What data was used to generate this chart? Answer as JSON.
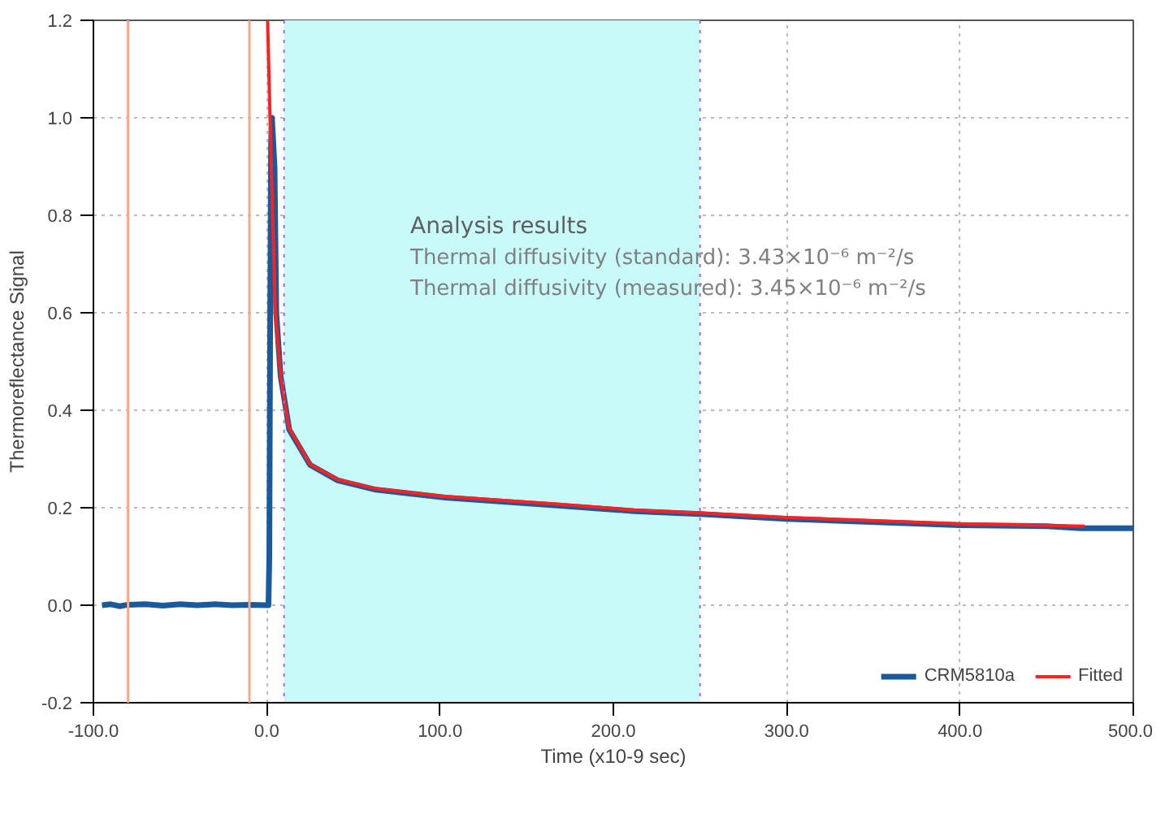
{
  "chart_data": {
    "type": "line",
    "xlabel": "Time (x10-9 sec)",
    "ylabel": "Thermoreflectance Signal",
    "xlim": [
      -100,
      500
    ],
    "ylim": [
      -0.2,
      1.2
    ],
    "xticks": [
      {
        "value": -100,
        "label": "-100.0"
      },
      {
        "value": 0,
        "label": "0.0"
      },
      {
        "value": 100,
        "label": "100.0"
      },
      {
        "value": 200,
        "label": "200.0"
      },
      {
        "value": 300,
        "label": "300.0"
      },
      {
        "value": 400,
        "label": "400.0"
      },
      {
        "value": 500,
        "label": "500.0"
      }
    ],
    "yticks": [
      {
        "value": -0.2,
        "label": "-0.2"
      },
      {
        "value": 0,
        "label": "0.0"
      },
      {
        "value": 0.2,
        "label": "0.2"
      },
      {
        "value": 0.4,
        "label": "0.4"
      },
      {
        "value": 0.6,
        "label": "0.6"
      },
      {
        "value": 0.8,
        "label": "0.8"
      },
      {
        "value": 1.0,
        "label": "1.0"
      },
      {
        "value": 1.2,
        "label": "1.2"
      }
    ],
    "grid": true,
    "legend": "bottom right",
    "marker": "none",
    "line_style": "solid",
    "series": [
      {
        "name": "CRM5810a",
        "color": "#1a5a9a",
        "x": [
          -95,
          -90,
          -85,
          -80,
          -70,
          -60,
          -50,
          -40,
          -30,
          -20,
          -10,
          0,
          1,
          1.5,
          2,
          2.5,
          3,
          4.5,
          5.5,
          8,
          13,
          25,
          41,
          63,
          103,
          166,
          212,
          250,
          300,
          400,
          450,
          470,
          500
        ],
        "values": [
          0,
          0.002,
          -0.002,
          0.001,
          0.002,
          -0.001,
          0.002,
          0,
          0.002,
          0,
          0.001,
          0,
          0,
          0.1,
          0.6,
          0.95,
          1.0,
          0.9,
          0.6,
          0.47,
          0.36,
          0.288,
          0.256,
          0.237,
          0.221,
          0.205,
          0.193,
          0.187,
          0.177,
          0.164,
          0.162,
          0.158,
          0.158
        ]
      },
      {
        "name": "Fitted",
        "color": "#ff2020",
        "x": [
          0.5,
          1.9,
          3.4,
          5,
          8.1,
          12.8,
          25,
          40.9,
          62.7,
          103,
          166,
          212.5,
          250,
          300,
          400,
          472
        ],
        "values": [
          1.2,
          1.0,
          0.8,
          0.6,
          0.467,
          0.364,
          0.289,
          0.258,
          0.239,
          0.223,
          0.208,
          0.195,
          0.189,
          0.18,
          0.167,
          0.162
        ]
      }
    ],
    "ref_lines": [
      {
        "axis": "x",
        "value": -80,
        "color": "#f7a888"
      },
      {
        "axis": "x",
        "value": -10,
        "color": "#f7a888"
      },
      {
        "axis": "x",
        "value": 10,
        "color": "#b060f0",
        "line_style": "dotted"
      },
      {
        "axis": "x",
        "value": 250,
        "color": "#b060f0",
        "line_style": "dotted"
      }
    ],
    "bands": [
      {
        "axis": "x",
        "from": 10,
        "to": 250,
        "color": "#c8fafa"
      }
    ],
    "annotations": [
      "Analysis results",
      "Thermal diffusivity (standard): 3.43×10⁻⁶ m⁻²/s",
      "Thermal diffusivity (measured): 3.45×10⁻⁶ m⁻²/s"
    ]
  }
}
